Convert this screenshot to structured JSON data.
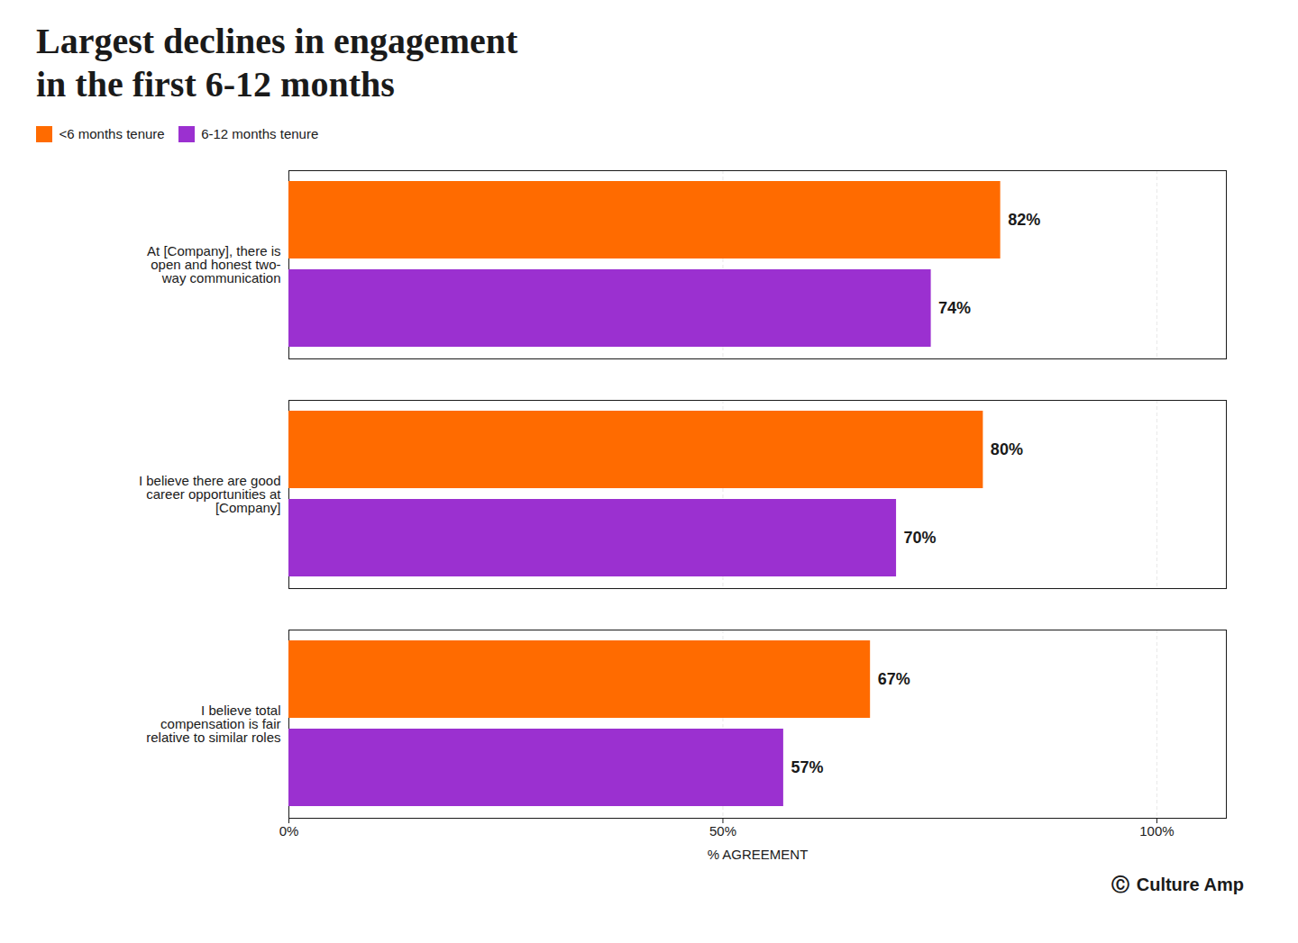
{
  "chart_data": {
    "type": "bar",
    "orientation": "horizontal",
    "title": "Largest declines in engagement\nin the first 6-12 months",
    "categories": [
      "At [Company], there is\nopen and honest two-\nway communication",
      "I believe there are good\ncareer opportunities at\n[Company]",
      "I believe total\ncompensation is fair\nrelative to similar roles"
    ],
    "series": [
      {
        "name": "<6 months tenure",
        "color": "#FF6B00",
        "values": [
          82,
          80,
          67
        ],
        "value_labels": [
          "82%",
          "80%",
          "67%"
        ]
      },
      {
        "name": "6-12 months tenure",
        "color": "#9B30D0",
        "values": [
          74,
          70,
          57
        ],
        "value_labels": [
          "74%",
          "70%",
          "57%"
        ]
      }
    ],
    "xlabel": "% AGREEMENT",
    "xlim": [
      0,
      108
    ],
    "xticks": [
      {
        "value": 0,
        "label": "0%"
      },
      {
        "value": 50,
        "label": "50%"
      },
      {
        "value": 100,
        "label": "100%"
      }
    ],
    "grid": true,
    "data_labels": true,
    "legend": "upper left",
    "annotations": [
      "Ⓒ",
      "Culture Amp"
    ]
  }
}
